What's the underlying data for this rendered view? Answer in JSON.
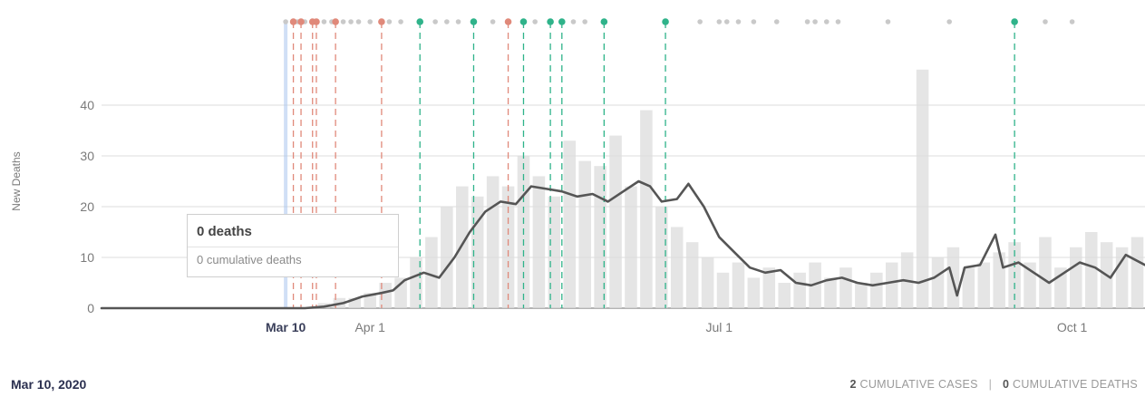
{
  "chart_data": {
    "type": "bar",
    "ylabel": "New Deaths",
    "xlabel": "",
    "ylim": [
      0,
      45
    ],
    "yticks": [
      0,
      10,
      20,
      30,
      40
    ],
    "x_ticks": [
      {
        "label": "Mar 10",
        "date": "2020-03-10",
        "current": true
      },
      {
        "label": "Apr 1",
        "date": "2020-04-01",
        "current": false
      },
      {
        "label": "Jul 1",
        "date": "2020-07-01",
        "current": false
      },
      {
        "label": "Oct 1",
        "date": "2020-10-01",
        "current": false
      }
    ],
    "x_range": [
      "2020-01-22",
      "2020-10-20"
    ],
    "selected_date": "2020-03-10",
    "series": [
      {
        "kind": "daily_bars",
        "color": "#dcdcdc",
        "points": [
          [
            "2020-03-20",
            1
          ],
          [
            "2020-03-24",
            2
          ],
          [
            "2020-03-28",
            2
          ],
          [
            "2020-04-01",
            3
          ],
          [
            "2020-04-05",
            5
          ],
          [
            "2020-04-09",
            6
          ],
          [
            "2020-04-13",
            10
          ],
          [
            "2020-04-17",
            14
          ],
          [
            "2020-04-21",
            20
          ],
          [
            "2020-04-25",
            24
          ],
          [
            "2020-04-29",
            22
          ],
          [
            "2020-05-03",
            26
          ],
          [
            "2020-05-07",
            24
          ],
          [
            "2020-05-11",
            30
          ],
          [
            "2020-05-15",
            26
          ],
          [
            "2020-05-19",
            22
          ],
          [
            "2020-05-23",
            33
          ],
          [
            "2020-05-27",
            29
          ],
          [
            "2020-05-31",
            28
          ],
          [
            "2020-06-04",
            34
          ],
          [
            "2020-06-08",
            24
          ],
          [
            "2020-06-12",
            39
          ],
          [
            "2020-06-16",
            20
          ],
          [
            "2020-06-20",
            16
          ],
          [
            "2020-06-24",
            13
          ],
          [
            "2020-06-28",
            10
          ],
          [
            "2020-07-02",
            7
          ],
          [
            "2020-07-06",
            9
          ],
          [
            "2020-07-10",
            6
          ],
          [
            "2020-07-14",
            8
          ],
          [
            "2020-07-18",
            5
          ],
          [
            "2020-07-22",
            7
          ],
          [
            "2020-07-26",
            9
          ],
          [
            "2020-07-30",
            6
          ],
          [
            "2020-08-03",
            8
          ],
          [
            "2020-08-07",
            5
          ],
          [
            "2020-08-11",
            7
          ],
          [
            "2020-08-15",
            9
          ],
          [
            "2020-08-19",
            11
          ],
          [
            "2020-08-23",
            47
          ],
          [
            "2020-08-27",
            10
          ],
          [
            "2020-08-31",
            12
          ],
          [
            "2020-09-04",
            8
          ],
          [
            "2020-09-08",
            9
          ],
          [
            "2020-09-12",
            11
          ],
          [
            "2020-09-16",
            13
          ],
          [
            "2020-09-20",
            9
          ],
          [
            "2020-09-24",
            14
          ],
          [
            "2020-09-28",
            8
          ],
          [
            "2020-10-02",
            12
          ],
          [
            "2020-10-06",
            15
          ],
          [
            "2020-10-10",
            13
          ],
          [
            "2020-10-14",
            12
          ],
          [
            "2020-10-18",
            14
          ]
        ]
      },
      {
        "kind": "moving_average",
        "color": "#555555",
        "points": [
          [
            "2020-01-22",
            0
          ],
          [
            "2020-03-15",
            0
          ],
          [
            "2020-03-20",
            0.3
          ],
          [
            "2020-03-25",
            1
          ],
          [
            "2020-03-30",
            2.3
          ],
          [
            "2020-04-04",
            3
          ],
          [
            "2020-04-07",
            3.5
          ],
          [
            "2020-04-10",
            5.5
          ],
          [
            "2020-04-15",
            7
          ],
          [
            "2020-04-19",
            6
          ],
          [
            "2020-04-23",
            10
          ],
          [
            "2020-04-27",
            15
          ],
          [
            "2020-05-01",
            19
          ],
          [
            "2020-05-05",
            21
          ],
          [
            "2020-05-09",
            20.5
          ],
          [
            "2020-05-13",
            24
          ],
          [
            "2020-05-17",
            23.5
          ],
          [
            "2020-05-21",
            23
          ],
          [
            "2020-05-25",
            22
          ],
          [
            "2020-05-29",
            22.5
          ],
          [
            "2020-06-02",
            21
          ],
          [
            "2020-06-06",
            23
          ],
          [
            "2020-06-10",
            25
          ],
          [
            "2020-06-13",
            24
          ],
          [
            "2020-06-16",
            21
          ],
          [
            "2020-06-20",
            21.5
          ],
          [
            "2020-06-23",
            24.5
          ],
          [
            "2020-06-27",
            20
          ],
          [
            "2020-07-01",
            14
          ],
          [
            "2020-07-05",
            11
          ],
          [
            "2020-07-09",
            8
          ],
          [
            "2020-07-13",
            7
          ],
          [
            "2020-07-17",
            7.5
          ],
          [
            "2020-07-21",
            5
          ],
          [
            "2020-07-25",
            4.5
          ],
          [
            "2020-07-29",
            5.5
          ],
          [
            "2020-08-02",
            6
          ],
          [
            "2020-08-06",
            5
          ],
          [
            "2020-08-10",
            4.5
          ],
          [
            "2020-08-14",
            5
          ],
          [
            "2020-08-18",
            5.5
          ],
          [
            "2020-08-22",
            5
          ],
          [
            "2020-08-26",
            6
          ],
          [
            "2020-08-30",
            8
          ],
          [
            "2020-09-01",
            2.5
          ],
          [
            "2020-09-03",
            8
          ],
          [
            "2020-09-07",
            8.5
          ],
          [
            "2020-09-11",
            14.5
          ],
          [
            "2020-09-13",
            8
          ],
          [
            "2020-09-17",
            9
          ],
          [
            "2020-09-21",
            7
          ],
          [
            "2020-09-25",
            5
          ],
          [
            "2020-09-29",
            7
          ],
          [
            "2020-10-03",
            9
          ],
          [
            "2020-10-07",
            8
          ],
          [
            "2020-10-11",
            6
          ],
          [
            "2020-10-15",
            10.5
          ],
          [
            "2020-10-20",
            8.5
          ]
        ]
      }
    ],
    "vertical_markers": {
      "red": [
        "2020-03-12",
        "2020-03-14",
        "2020-03-17",
        "2020-03-18",
        "2020-03-23",
        "2020-04-04",
        "2020-05-07"
      ],
      "green": [
        "2020-04-14",
        "2020-04-28",
        "2020-05-11",
        "2020-05-18",
        "2020-05-21",
        "2020-06-01",
        "2020-06-17",
        "2020-09-16"
      ],
      "gray_dots": [
        "2020-03-10",
        "2020-03-13",
        "2020-03-15",
        "2020-03-20",
        "2020-03-22",
        "2020-03-25",
        "2020-03-27",
        "2020-03-29",
        "2020-04-01",
        "2020-04-06",
        "2020-04-09",
        "2020-04-18",
        "2020-04-21",
        "2020-04-24",
        "2020-05-03",
        "2020-05-14",
        "2020-05-24",
        "2020-05-27",
        "2020-06-26",
        "2020-07-01",
        "2020-07-03",
        "2020-07-06",
        "2020-07-10",
        "2020-07-16",
        "2020-07-24",
        "2020-07-26",
        "2020-07-29",
        "2020-08-01",
        "2020-08-14",
        "2020-08-30",
        "2020-09-24",
        "2020-10-01"
      ]
    },
    "selected_band_color": "#a9c4ee",
    "red_color": "#e0897a",
    "green_color": "#2fb38a",
    "gray_dot_color": "#c9c9c9"
  },
  "tooltip": {
    "title": "0 deaths",
    "subtitle": "0 cumulative deaths"
  },
  "footer": {
    "date": "Mar 10, 2020",
    "cases_value": "2",
    "cases_label": "CUMULATIVE CASES",
    "separator": "|",
    "deaths_value": "0",
    "deaths_label": "CUMULATIVE DEATHS"
  }
}
